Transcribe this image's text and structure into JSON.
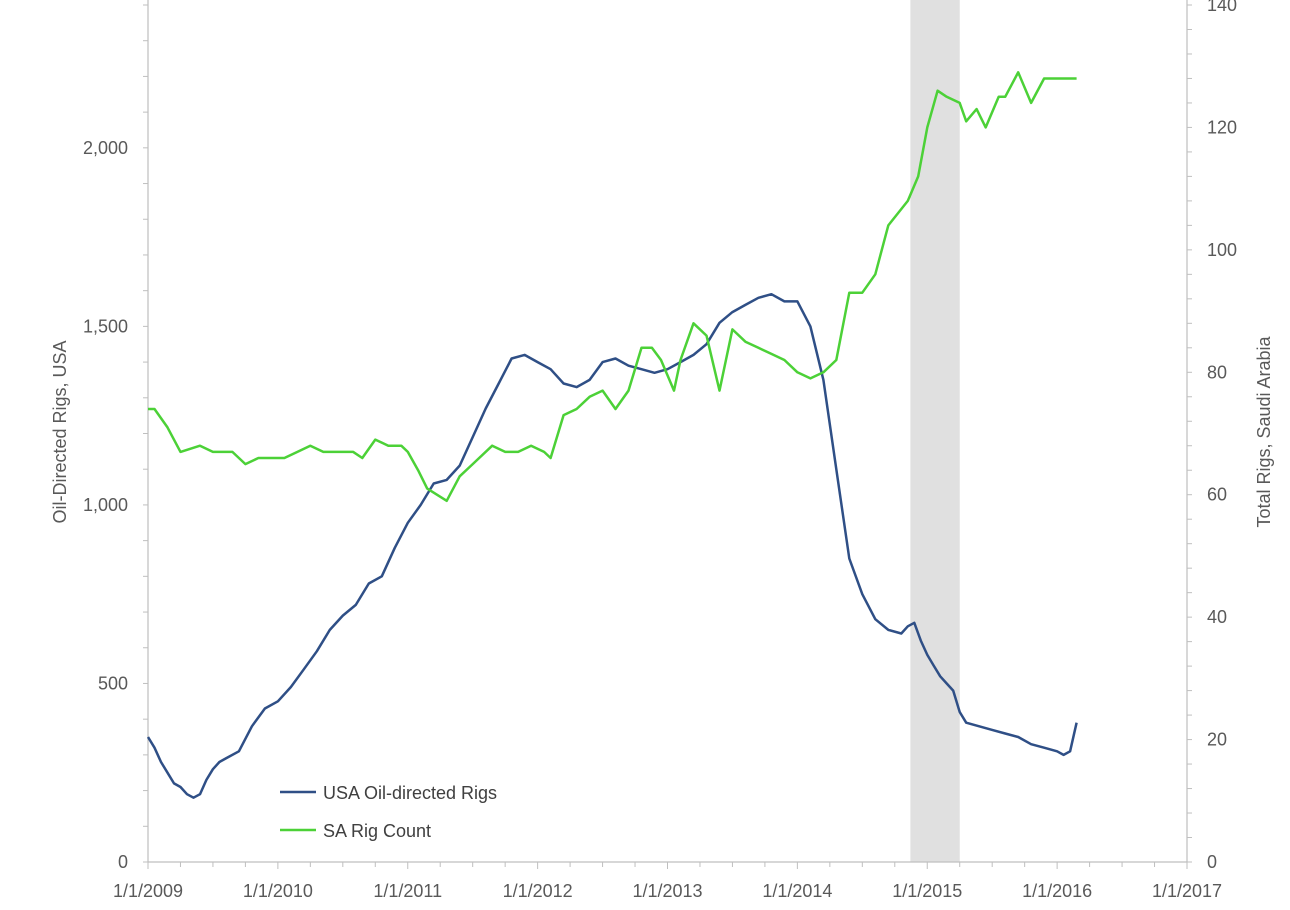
{
  "chart_data": {
    "type": "line",
    "title": "",
    "xlabel": "",
    "ylabel_left": "Oil-Directed Rigs, USA",
    "ylabel_right": "Total Rigs, Saudi Arabia",
    "x_ticks": [
      "1/1/2009",
      "1/1/2010",
      "1/1/2011",
      "1/1/2012",
      "1/1/2013",
      "1/1/2014",
      "1/1/2015",
      "1/1/2016",
      "1/1/2017"
    ],
    "xlim": [
      2009.0,
      2017.0
    ],
    "ylim_left": [
      0,
      2400
    ],
    "y_ticks_left": [
      0,
      500,
      1000,
      1500,
      2000
    ],
    "y_tick_labels_left": [
      "0",
      "500",
      "1,000",
      "1,500",
      "2,000"
    ],
    "ylim_right": [
      0,
      140
    ],
    "y_ticks_right": [
      0,
      20,
      40,
      60,
      80,
      100,
      120,
      140
    ],
    "y_tick_labels_right": [
      "0",
      "20",
      "40",
      "60",
      "80",
      "100",
      "120",
      "140"
    ],
    "grid": false,
    "legend_position": "bottom-left",
    "shaded_region": {
      "x_start": 2014.87,
      "x_end": 2015.25,
      "color": "#d9d9d9"
    },
    "series": [
      {
        "name": "USA Oil-directed Rigs",
        "axis": "left",
        "color": "#2f4f86",
        "x": [
          2009.0,
          2009.05,
          2009.1,
          2009.15,
          2009.2,
          2009.25,
          2009.3,
          2009.35,
          2009.4,
          2009.45,
          2009.5,
          2009.55,
          2009.6,
          2009.7,
          2009.8,
          2009.9,
          2010.0,
          2010.1,
          2010.2,
          2010.3,
          2010.4,
          2010.5,
          2010.6,
          2010.7,
          2010.8,
          2010.9,
          2011.0,
          2011.1,
          2011.2,
          2011.3,
          2011.4,
          2011.5,
          2011.6,
          2011.7,
          2011.8,
          2011.9,
          2012.0,
          2012.1,
          2012.2,
          2012.3,
          2012.4,
          2012.5,
          2012.6,
          2012.7,
          2012.8,
          2012.9,
          2013.0,
          2013.1,
          2013.2,
          2013.3,
          2013.4,
          2013.5,
          2013.6,
          2013.7,
          2013.8,
          2013.9,
          2014.0,
          2014.1,
          2014.2,
          2014.3,
          2014.4,
          2014.5,
          2014.6,
          2014.7,
          2014.8,
          2014.85,
          2014.9,
          2014.95,
          2015.0,
          2015.05,
          2015.1,
          2015.15,
          2015.2,
          2015.25,
          2015.3,
          2015.4,
          2015.5,
          2015.6,
          2015.7,
          2015.8,
          2015.9,
          2016.0,
          2016.05,
          2016.1,
          2016.15
        ],
        "values": [
          350,
          320,
          280,
          250,
          220,
          210,
          190,
          180,
          190,
          230,
          260,
          280,
          290,
          310,
          380,
          430,
          450,
          490,
          540,
          590,
          650,
          690,
          720,
          780,
          800,
          880,
          950,
          1000,
          1060,
          1070,
          1110,
          1190,
          1270,
          1340,
          1410,
          1420,
          1400,
          1380,
          1340,
          1330,
          1350,
          1400,
          1410,
          1390,
          1380,
          1370,
          1380,
          1400,
          1420,
          1450,
          1510,
          1540,
          1560,
          1580,
          1590,
          1570,
          1570,
          1500,
          1350,
          1100,
          850,
          750,
          680,
          650,
          640,
          660,
          670,
          620,
          580,
          550,
          520,
          500,
          480,
          420,
          390,
          380,
          370,
          360,
          350,
          330,
          320,
          310,
          300,
          310,
          390
        ]
      },
      {
        "name": "SA Rig Count",
        "axis": "right",
        "color": "#4cd137",
        "x": [
          2009.0,
          2009.05,
          2009.15,
          2009.25,
          2009.4,
          2009.5,
          2009.65,
          2009.75,
          2009.85,
          2009.95,
          2010.05,
          2010.15,
          2010.25,
          2010.35,
          2010.5,
          2010.58,
          2010.65,
          2010.75,
          2010.85,
          2010.95,
          2011.0,
          2011.08,
          2011.15,
          2011.3,
          2011.4,
          2011.5,
          2011.65,
          2011.75,
          2011.85,
          2011.95,
          2012.05,
          2012.1,
          2012.2,
          2012.3,
          2012.4,
          2012.5,
          2012.6,
          2012.7,
          2012.8,
          2012.88,
          2012.95,
          2013.05,
          2013.1,
          2013.2,
          2013.3,
          2013.4,
          2013.5,
          2013.6,
          2013.7,
          2013.8,
          2013.9,
          2014.0,
          2014.1,
          2014.2,
          2014.3,
          2014.4,
          2014.5,
          2014.6,
          2014.7,
          2014.85,
          2014.93,
          2015.0,
          2015.08,
          2015.15,
          2015.25,
          2015.3,
          2015.38,
          2015.45,
          2015.55,
          2015.6,
          2015.7,
          2015.8,
          2015.9,
          2016.0,
          2016.05,
          2016.1,
          2016.15
        ],
        "values": [
          74,
          74,
          71,
          67,
          68,
          67,
          67,
          65,
          66,
          66,
          66,
          67,
          68,
          67,
          67,
          67,
          66,
          69,
          68,
          68,
          67,
          64,
          61,
          59,
          63,
          65,
          68,
          67,
          67,
          68,
          67,
          66,
          73,
          74,
          76,
          77,
          74,
          77,
          84,
          84,
          82,
          77,
          82,
          88,
          86,
          77,
          87,
          85,
          84,
          83,
          82,
          80,
          79,
          80,
          82,
          93,
          93,
          96,
          104,
          108,
          112,
          120,
          126,
          125,
          124,
          121,
          123,
          120,
          125,
          125,
          129,
          124,
          128,
          128,
          128,
          128,
          128
        ]
      }
    ]
  }
}
